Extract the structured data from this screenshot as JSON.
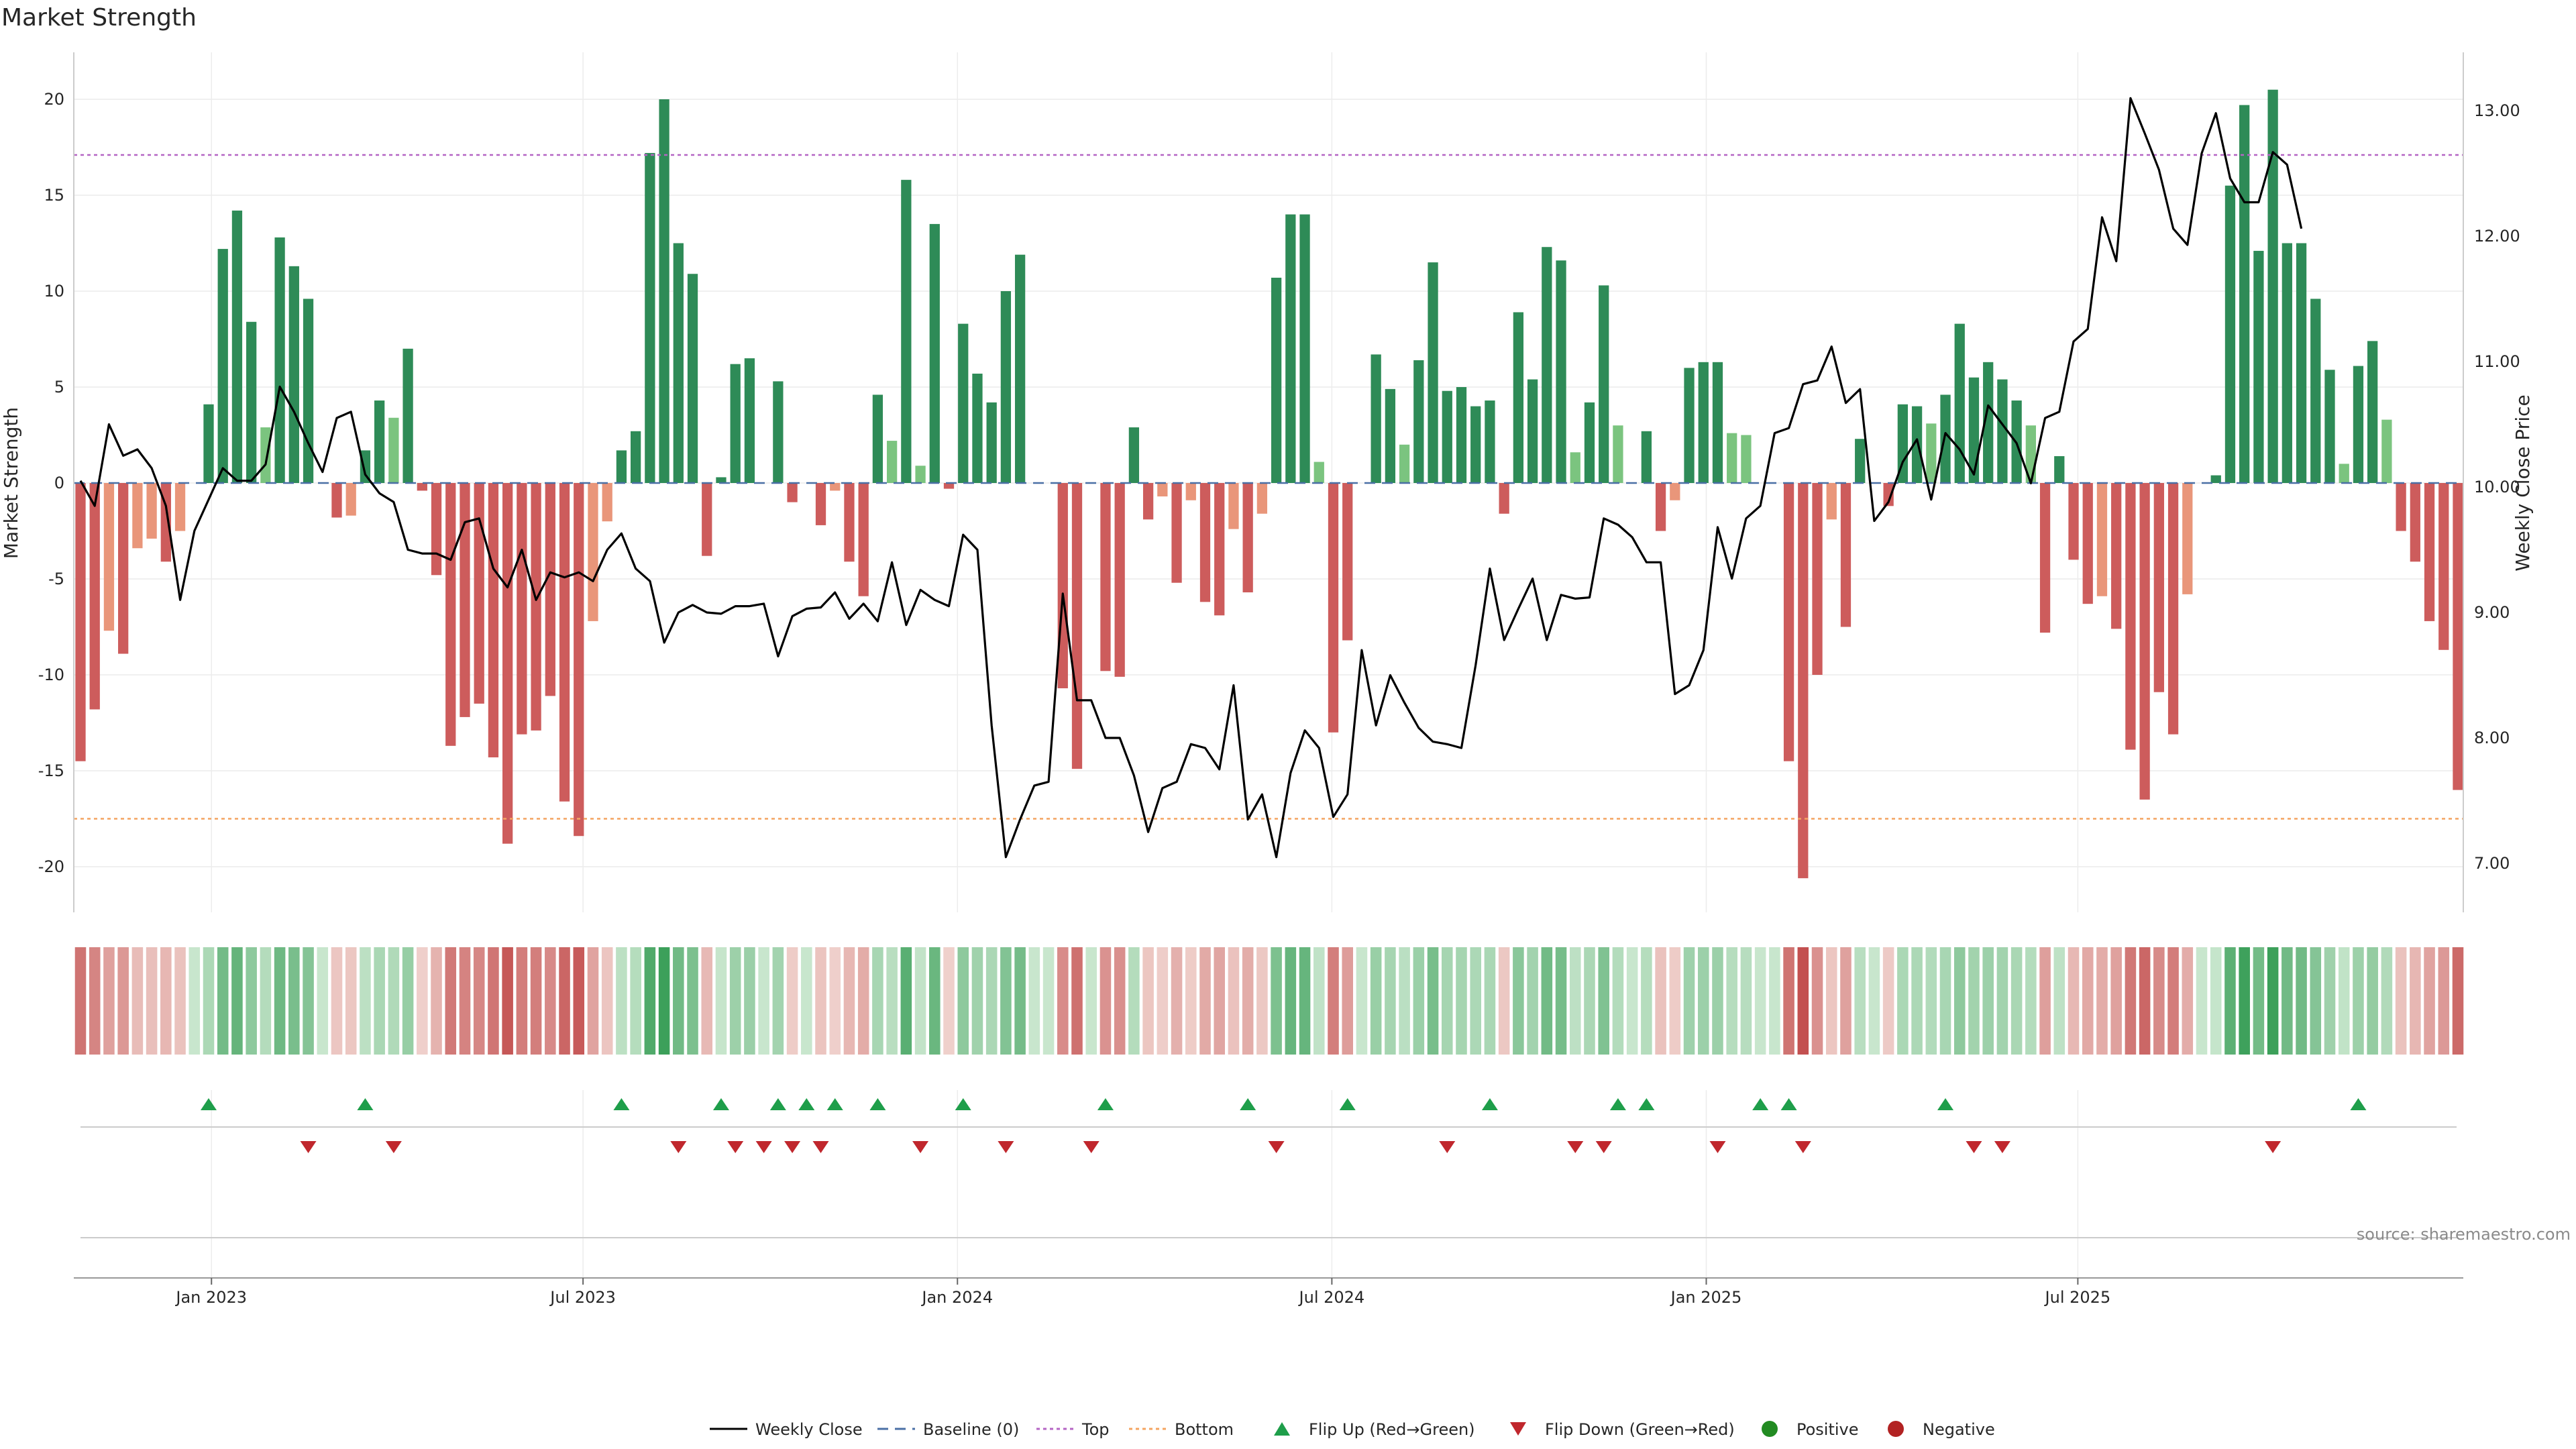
{
  "chart_data": {
    "type": "bar",
    "title": "Market Strength",
    "ylabel": "Market Strength",
    "y2label": "Weekly Close Price",
    "ylim": [
      -22.5,
      22.5
    ],
    "y2lim": [
      6.8,
      13.35
    ],
    "yticks": [
      20,
      15,
      10,
      5,
      0,
      -5,
      -10,
      -15,
      -20
    ],
    "y2ticks": [
      "13.00",
      "12.00",
      "11.00",
      "10.00",
      "9.00",
      "8.00",
      "7.00"
    ],
    "xticks": [
      "Jan 2023",
      "Jul 2023",
      "Jan 2024",
      "Jul 2024",
      "Jan 2025",
      "Jul 2025"
    ],
    "top_line": 17.1,
    "bottom_line": -17.5,
    "strength": [
      -14.5,
      -11.8,
      -7.7,
      -8.9,
      -3.4,
      -2.9,
      -4.1,
      -2.5,
      0,
      4.1,
      12.2,
      14.2,
      8.4,
      2.9,
      12.8,
      11.3,
      9.6,
      0,
      -1.8,
      -1.7,
      1.7,
      4.3,
      3.4,
      7,
      -0.4,
      -4.8,
      -13.7,
      -12.2,
      -11.5,
      -14.3,
      -18.8,
      -13.1,
      -12.9,
      -11.1,
      -16.6,
      -18.4,
      -7.2,
      -2,
      1.7,
      2.7,
      17.2,
      20,
      12.5,
      10.9,
      -3.8,
      0.3,
      6.2,
      6.5,
      0,
      5.3,
      -1,
      0,
      -2.2,
      -0.4,
      -4.1,
      -5.9,
      4.6,
      2.2,
      15.8,
      0.9,
      13.5,
      -0.3,
      8.3,
      5.7,
      4.2,
      10,
      11.9,
      0,
      0,
      -10.7,
      -14.9,
      0,
      -9.8,
      -10.1,
      2.9,
      -1.9,
      -0.7,
      -5.2,
      -0.9,
      -6.2,
      -6.9,
      -2.4,
      -5.7,
      -1.6,
      10.7,
      14,
      14,
      1.1,
      -13,
      -8.2,
      0,
      6.7,
      4.9,
      2,
      6.4,
      11.5,
      4.8,
      5,
      4,
      4.3,
      -1.6,
      8.9,
      5.4,
      12.3,
      11.6,
      1.6,
      4.2,
      10.3,
      3,
      0,
      2.7,
      -2.5,
      -0.9,
      6,
      6.3,
      6.3,
      2.6,
      2.5,
      0,
      0,
      -14.5,
      -20.6,
      -10,
      -1.9,
      -7.5,
      2.3,
      0,
      -1.2,
      4.1,
      4,
      3.1,
      4.6,
      8.3,
      5.5,
      6.3,
      5.4,
      4.3,
      3,
      -7.8,
      1.4,
      -4,
      -6.3,
      -5.9,
      -7.6,
      -13.9,
      -16.5,
      -10.9,
      -13.1,
      -5.8,
      0,
      0.4,
      15.5,
      19.7,
      12.1,
      20.5,
      12.5,
      12.5,
      9.6,
      5.9,
      1,
      6.1,
      7.4,
      3.3,
      -2.5,
      -4.1,
      -7.2,
      -8.7,
      -16
    ],
    "weekly_close": [
      10.05,
      9.85,
      10.5,
      10.25,
      10.3,
      10.15,
      9.85,
      9.1,
      9.65,
      9.9,
      10.15,
      10.05,
      10.05,
      10.18,
      10.8,
      10.6,
      10.35,
      10.12,
      10.55,
      10.6,
      10.1,
      9.95,
      9.88,
      9.5,
      9.47,
      9.47,
      9.42,
      9.72,
      9.75,
      9.35,
      9.2,
      9.5,
      9.1,
      9.32,
      9.28,
      9.32,
      9.25,
      9.5,
      9.63,
      9.35,
      9.25,
      8.76,
      9.0,
      9.06,
      9.0,
      8.99,
      9.05,
      9.05,
      9.07,
      8.65,
      8.97,
      9.03,
      9.04,
      9.16,
      8.95,
      9.07,
      8.93,
      9.4,
      8.9,
      9.18,
      9.1,
      9.05,
      9.62,
      9.5,
      8.1,
      7.05,
      7.35,
      7.62,
      7.65,
      9.15,
      8.3,
      8.3,
      8.0,
      8.0,
      7.7,
      7.25,
      7.6,
      7.65,
      7.95,
      7.92,
      7.75,
      8.42,
      7.35,
      7.55,
      7.05,
      7.72,
      8.06,
      7.92,
      7.37,
      7.55,
      8.7,
      8.1,
      8.5,
      8.28,
      8.08,
      7.97,
      7.95,
      7.92,
      8.58,
      9.35,
      8.78,
      9.03,
      9.27,
      8.78,
      9.14,
      9.11,
      9.12,
      9.75,
      9.7,
      9.6,
      9.4,
      9.4,
      8.35,
      8.42,
      8.7,
      9.68,
      9.27,
      9.75,
      9.85,
      10.43,
      10.47,
      10.82,
      10.85,
      11.12,
      10.67,
      10.78,
      9.73,
      9.88,
      10.2,
      10.38,
      9.9,
      10.43,
      10.3,
      10.1,
      10.65,
      10.5,
      10.35,
      10.03,
      10.55,
      10.6,
      11.16,
      11.26,
      12.15,
      11.8,
      13.1,
      12.82,
      12.53,
      12.06,
      11.93,
      12.66,
      12.98,
      12.46,
      12.27,
      12.27,
      12.67,
      12.57,
      12.06
    ],
    "flip_up": [
      9,
      20,
      38,
      45,
      49,
      51,
      53,
      56,
      62,
      72,
      82,
      89,
      99,
      108,
      110,
      118,
      120,
      131,
      160
    ],
    "flip_down": [
      16,
      22,
      42,
      46,
      48,
      50,
      52,
      59,
      65,
      71,
      84,
      96,
      105,
      107,
      115,
      121,
      133,
      135,
      154
    ],
    "legend": [
      "Weekly Close",
      "Baseline (0)",
      "Top",
      "Bottom",
      "Flip Up (Red→Green)",
      "Flip Down (Green→Red)",
      "Positive",
      "Negative"
    ],
    "source": "source: sharemaestro.com",
    "colors": {
      "bar_pos_strong": "#2e8b57",
      "bar_pos_weak": "#7bc47f",
      "bar_neg_strong": "#cd5c5c",
      "bar_neg_weak": "#e9967a",
      "line": "#000000",
      "baseline": "#4a6fa5",
      "top": "#b565c4",
      "bottom": "#f4a460",
      "flip_up": "#1e9e4a",
      "flip_down": "#c0272d",
      "positive": "#228b22",
      "negative": "#b22222"
    },
    "grid": true
  }
}
